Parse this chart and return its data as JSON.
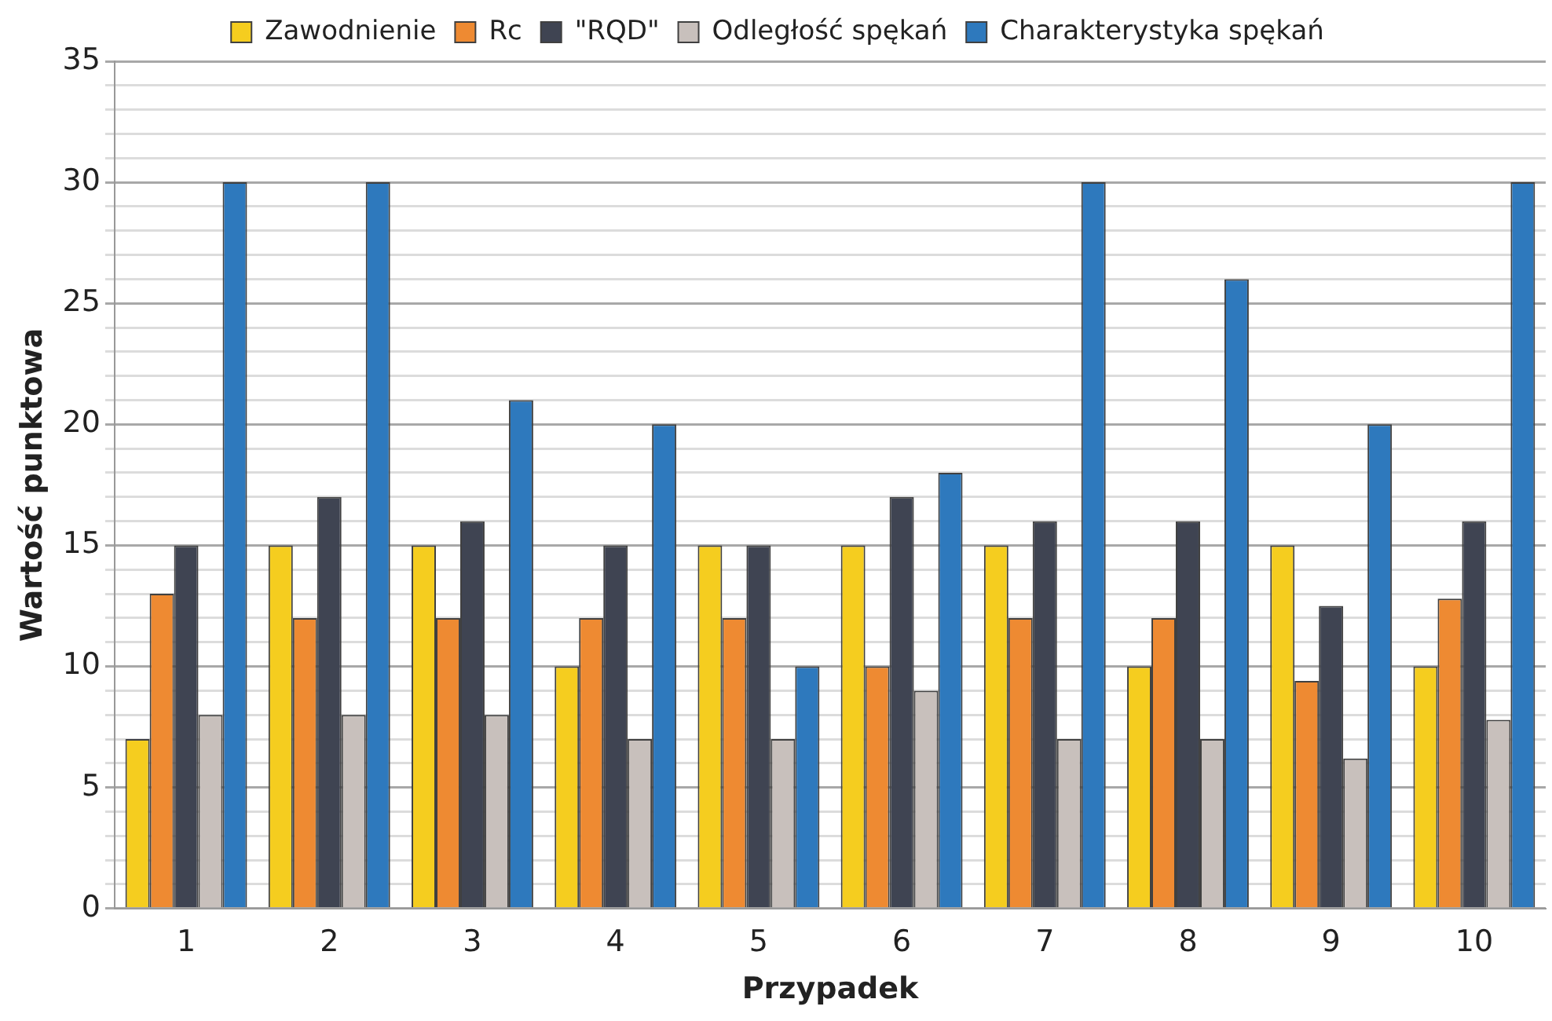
{
  "chart_data": {
    "type": "bar",
    "xlabel": "Przypadek",
    "ylabel": "Wartość punktowa",
    "categories": [
      "1",
      "2",
      "3",
      "4",
      "5",
      "6",
      "7",
      "8",
      "9",
      "10"
    ],
    "series": [
      {
        "name": "Zawodnienie",
        "color": "#f5cd1f",
        "values": [
          7,
          15,
          15,
          10,
          15,
          15,
          15,
          10,
          15,
          10
        ]
      },
      {
        "name": "Rc",
        "color": "#ee8a32",
        "values": [
          13,
          12,
          12,
          12,
          12,
          10,
          12,
          12,
          9.4,
          12.8
        ]
      },
      {
        "name": "\"RQD\"",
        "color": "#3f4452",
        "values": [
          15,
          17,
          16,
          15,
          15,
          17,
          16,
          16,
          12.5,
          16
        ]
      },
      {
        "name": "Odległość spękań",
        "color": "#c8c0bc",
        "values": [
          8,
          8,
          8,
          7,
          7,
          9,
          7,
          7,
          6.2,
          7.8
        ]
      },
      {
        "name": "Charakterystyka spękań",
        "color": "#2e79bd",
        "values": [
          30,
          30,
          21,
          20,
          10,
          18,
          30,
          26,
          20,
          30
        ]
      }
    ],
    "ylim": [
      0,
      35
    ],
    "yticks": [
      0,
      {
        "value": 1,
        "label": null
      },
      {
        "value": 2,
        "label": null
      },
      {
        "value": 3,
        "label": null
      },
      {
        "value": 4,
        "label": null
      },
      5,
      {
        "value": 6,
        "label": null
      },
      {
        "value": 7,
        "label": null
      },
      {
        "value": 8,
        "label": null
      },
      {
        "value": 9,
        "label": null
      },
      10,
      {
        "value": 11,
        "label": null
      },
      {
        "value": 12,
        "label": null
      },
      {
        "value": 13,
        "label": null
      },
      {
        "value": 14,
        "label": null
      },
      15,
      {
        "value": 16,
        "label": null
      },
      {
        "value": 17,
        "label": null
      },
      {
        "value": 18,
        "label": null
      },
      {
        "value": 19,
        "label": null
      },
      20,
      {
        "value": 21,
        "label": null
      },
      {
        "value": 22,
        "label": null
      },
      {
        "value": 23,
        "label": null
      },
      {
        "value": 24,
        "label": null
      },
      25,
      {
        "value": 26,
        "label": null
      },
      {
        "value": 27,
        "label": null
      },
      {
        "value": 28,
        "label": null
      },
      {
        "value": 29,
        "label": null
      },
      30,
      {
        "value": 31,
        "label": null
      },
      {
        "value": 32,
        "label": null
      },
      {
        "value": 33,
        "label": null
      },
      {
        "value": 34,
        "label": null
      },
      35
    ],
    "grid": "y",
    "legend": "top"
  }
}
